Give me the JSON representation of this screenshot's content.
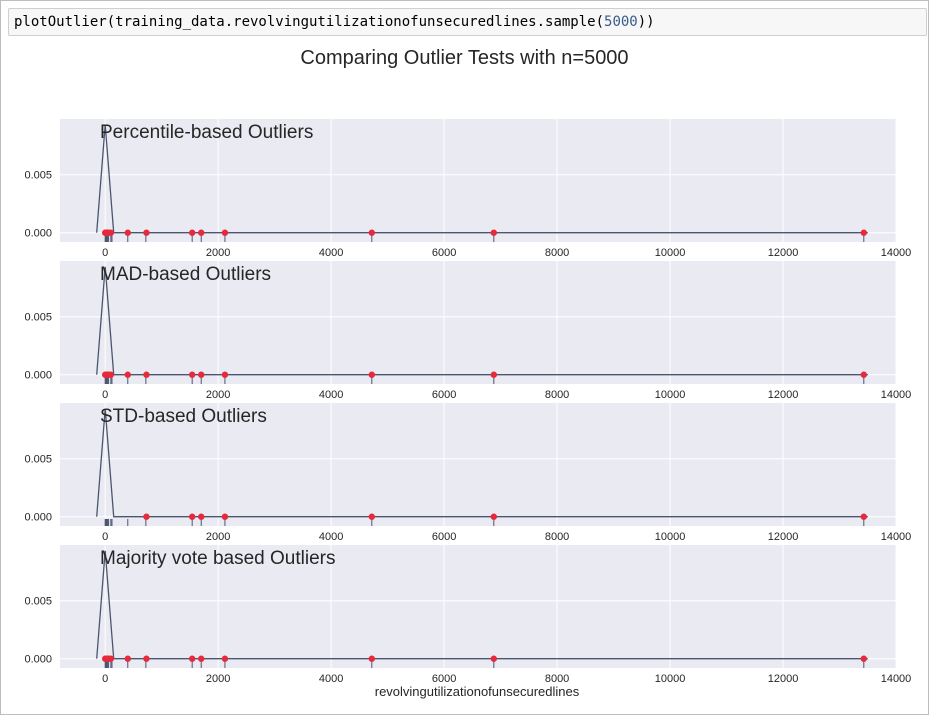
{
  "code": {
    "prefix": "plotOutlier(training_data.revolvingutilizationofunsecuredlines.sample(",
    "number": "5000",
    "suffix": "))"
  },
  "figure": {
    "title": "Comparing Outlier Tests with n=5000",
    "xlabel": "revolvingutilizationofunsecuredlines"
  },
  "colors": {
    "panel_bg": "#eaeaf2",
    "grid": "#ffffff",
    "kde_line": "#4c5570",
    "outlier": "#e8283b",
    "text": "#262626"
  },
  "chart_data": [
    {
      "type": "line",
      "title": "Percentile-based Outliers",
      "xlim": [
        -800,
        14000
      ],
      "ylim": [
        -0.0008,
        0.0098
      ],
      "xticks": [
        0,
        2000,
        4000,
        6000,
        8000,
        10000,
        12000,
        14000
      ],
      "yticks": [
        0.0,
        0.005
      ],
      "ytick_labels": [
        "0.000",
        "0.005"
      ],
      "grid": true,
      "kde": {
        "x": [
          -150,
          0,
          150,
          13500
        ],
        "y": [
          0,
          0.0093,
          0,
          0
        ]
      },
      "rug_x": [
        0,
        5,
        10,
        20,
        30,
        45,
        60,
        100,
        120,
        400,
        720,
        1540,
        1700,
        2120,
        4720,
        6880,
        13430
      ],
      "outliers_x": [
        0,
        10,
        20,
        40,
        60,
        100,
        400,
        730,
        1540,
        1700,
        2120,
        4720,
        6880,
        13430
      ]
    },
    {
      "type": "line",
      "title": "MAD-based Outliers",
      "xlim": [
        -800,
        14000
      ],
      "ylim": [
        -0.0008,
        0.0098
      ],
      "xticks": [
        0,
        2000,
        4000,
        6000,
        8000,
        10000,
        12000,
        14000
      ],
      "yticks": [
        0.0,
        0.005
      ],
      "ytick_labels": [
        "0.000",
        "0.005"
      ],
      "grid": true,
      "kde": {
        "x": [
          -150,
          0,
          150,
          13500
        ],
        "y": [
          0,
          0.0093,
          0,
          0
        ]
      },
      "rug_x": [
        0,
        5,
        10,
        20,
        30,
        45,
        60,
        100,
        120,
        400,
        720,
        1540,
        1700,
        2120,
        4720,
        6880,
        13430
      ],
      "outliers_x": [
        0,
        10,
        20,
        40,
        60,
        100,
        400,
        730,
        1540,
        1700,
        2120,
        4720,
        6880,
        13430
      ]
    },
    {
      "type": "line",
      "title": "STD-based Outliers",
      "xlim": [
        -800,
        14000
      ],
      "ylim": [
        -0.0008,
        0.0098
      ],
      "xticks": [
        0,
        2000,
        4000,
        6000,
        8000,
        10000,
        12000,
        14000
      ],
      "yticks": [
        0.0,
        0.005
      ],
      "ytick_labels": [
        "0.000",
        "0.005"
      ],
      "grid": true,
      "kde": {
        "x": [
          -150,
          0,
          150,
          13500
        ],
        "y": [
          0,
          0.0093,
          0,
          0
        ]
      },
      "rug_x": [
        0,
        5,
        10,
        20,
        30,
        45,
        60,
        100,
        120,
        400,
        720,
        1540,
        1700,
        2120,
        4720,
        6880,
        13430
      ],
      "outliers_x": [
        730,
        1540,
        1700,
        2120,
        4720,
        6880,
        13430
      ]
    },
    {
      "type": "line",
      "title": "Majority vote based Outliers",
      "xlim": [
        -800,
        14000
      ],
      "ylim": [
        -0.0008,
        0.0098
      ],
      "xticks": [
        0,
        2000,
        4000,
        6000,
        8000,
        10000,
        12000,
        14000
      ],
      "yticks": [
        0.0,
        0.005
      ],
      "ytick_labels": [
        "0.000",
        "0.005"
      ],
      "grid": true,
      "kde": {
        "x": [
          -150,
          0,
          150,
          13500
        ],
        "y": [
          0,
          0.0093,
          0,
          0
        ]
      },
      "rug_x": [
        0,
        5,
        10,
        20,
        30,
        45,
        60,
        100,
        120,
        400,
        720,
        1540,
        1700,
        2120,
        4720,
        6880,
        13430
      ],
      "outliers_x": [
        0,
        10,
        20,
        40,
        60,
        100,
        400,
        730,
        1540,
        1700,
        2120,
        4720,
        6880,
        13430
      ]
    }
  ]
}
